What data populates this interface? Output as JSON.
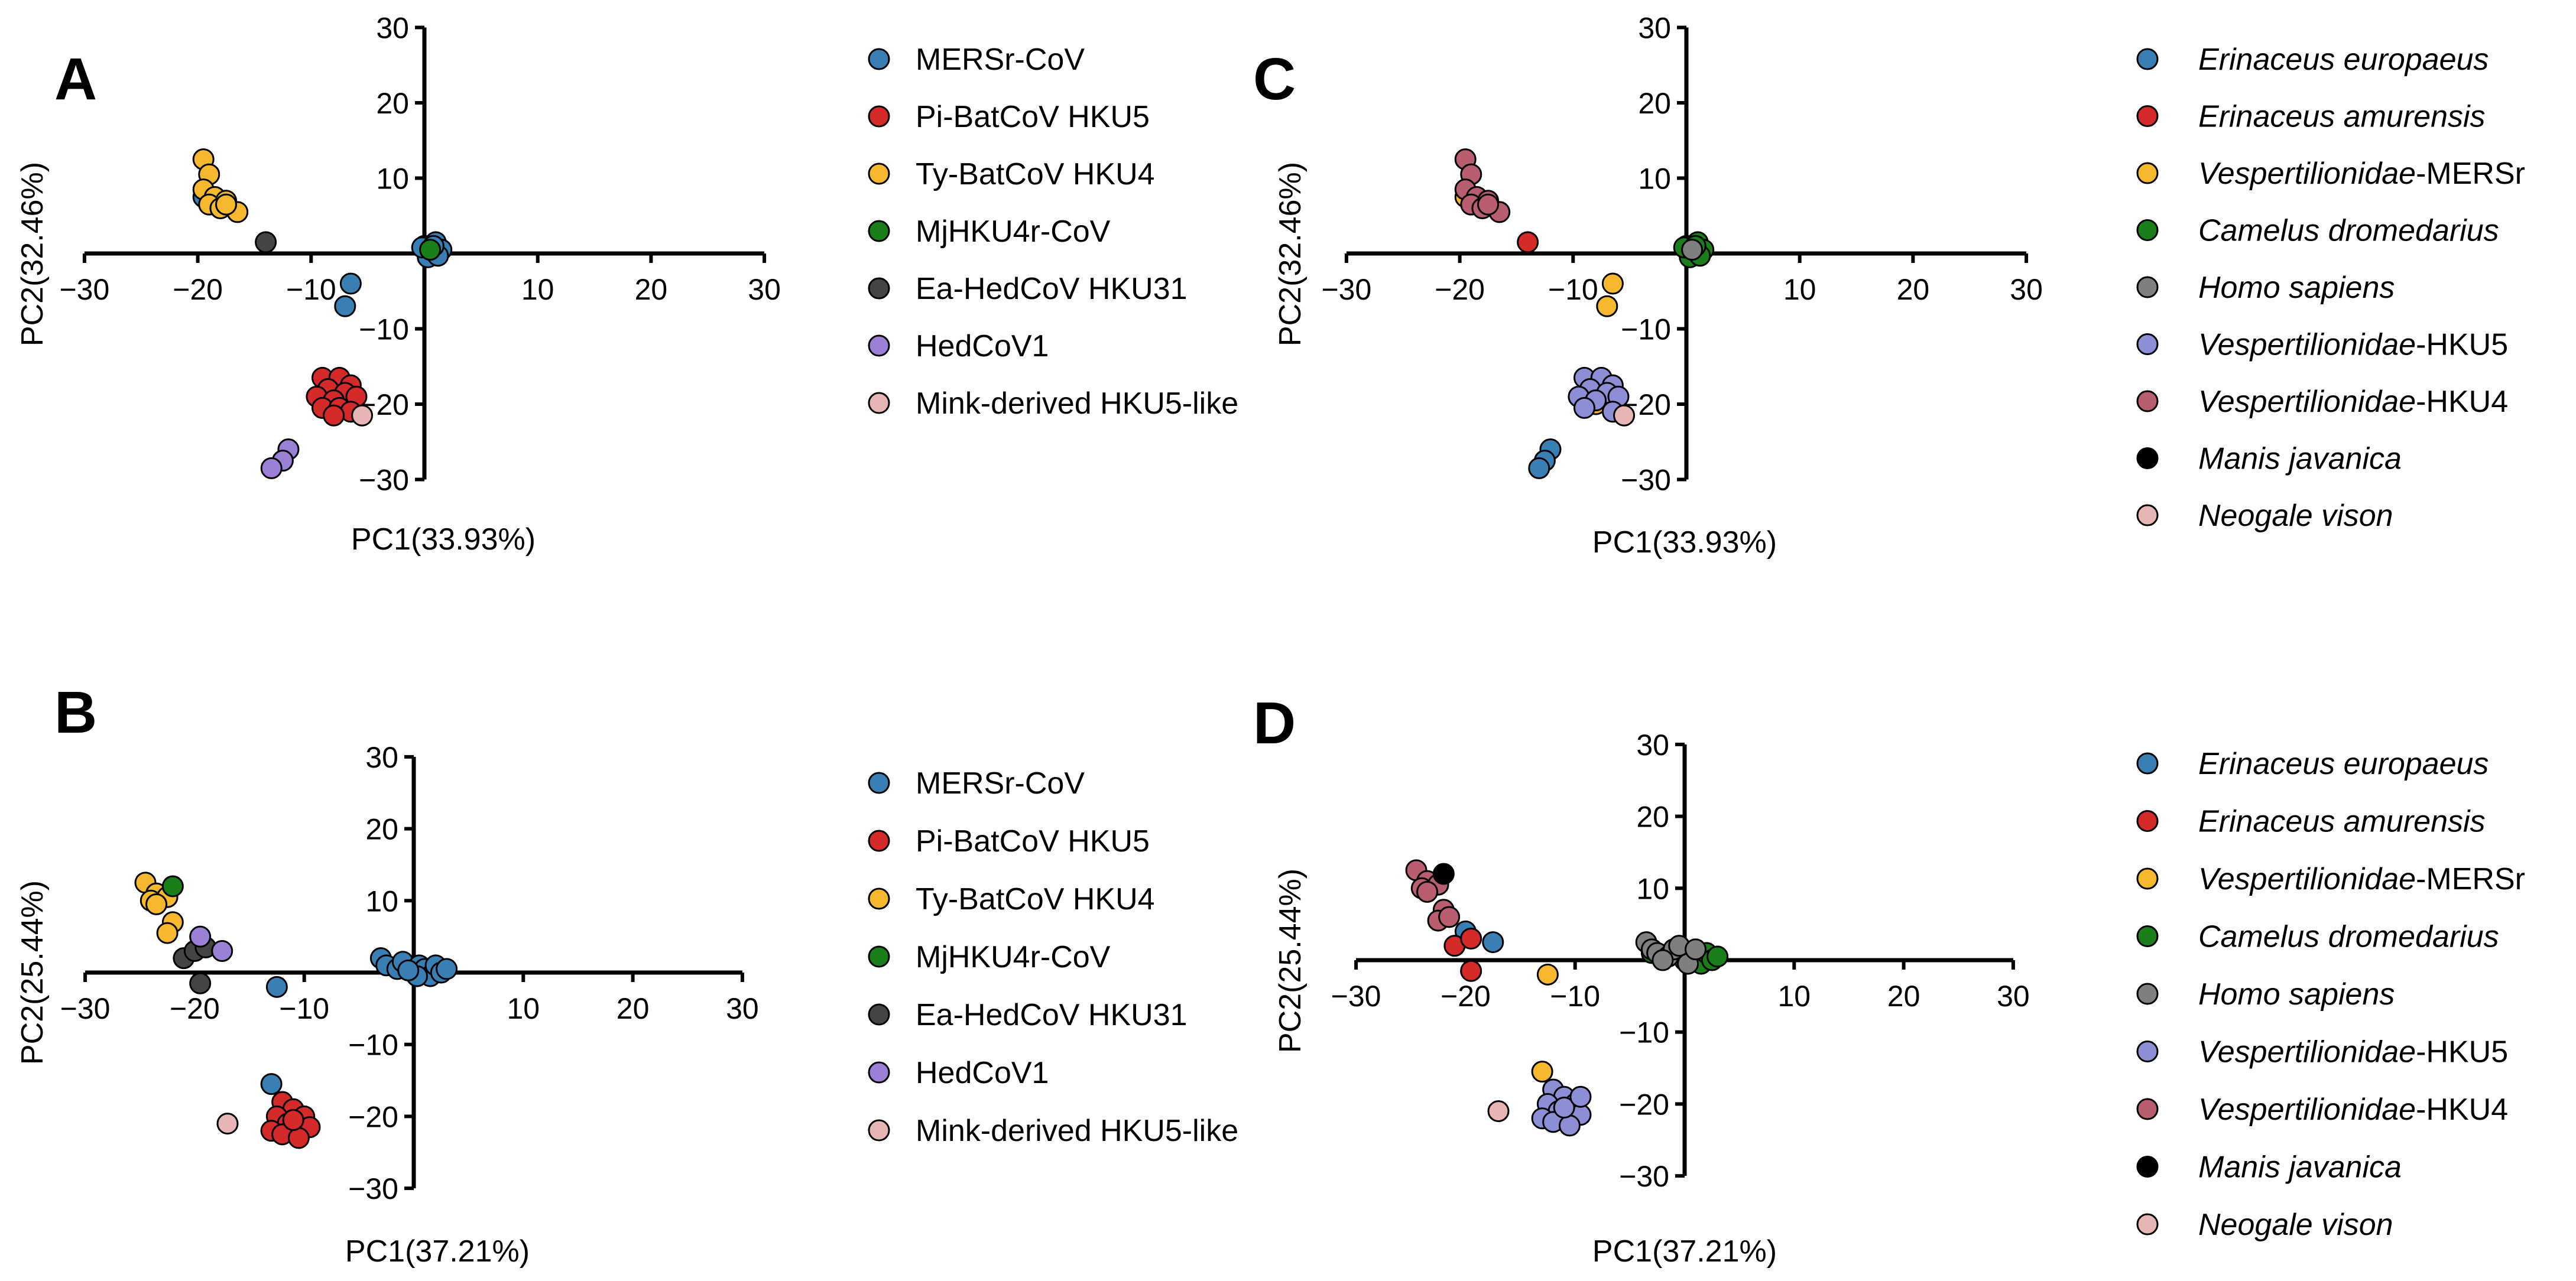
{
  "chart_data": [
    {
      "panel": "A",
      "type": "scatter",
      "xlabel": "PC1(33.93%)",
      "ylabel": "PC2(32.46%)",
      "xlim": [
        -30,
        30
      ],
      "ylim": [
        -30,
        30
      ],
      "xticks": [
        -30,
        -20,
        -10,
        0,
        10,
        20,
        30
      ],
      "yticks": [
        -30,
        -20,
        -10,
        0,
        10,
        20,
        30
      ],
      "legend": "right",
      "series": [
        {
          "name": "MERSr-CoV",
          "color": "#3a7fb4",
          "points": [
            [
              -19.5,
              7.5
            ],
            [
              -6.5,
              -4
            ],
            [
              -7,
              -7
            ],
            [
              -7.5,
              -20
            ],
            [
              0,
              1
            ],
            [
              0.5,
              0
            ],
            [
              1,
              1.5
            ],
            [
              1.5,
              0.5
            ],
            [
              0.3,
              -0.5
            ],
            [
              1.2,
              -0.3
            ],
            [
              -0.2,
              0.8
            ],
            [
              0.8,
              1
            ]
          ]
        },
        {
          "name": "Pi-BatCoV HKU5",
          "color": "#d42a2a",
          "points": [
            [
              -9,
              -16.5
            ],
            [
              -7.5,
              -16.5
            ],
            [
              -6.5,
              -17.5
            ],
            [
              -8.5,
              -18
            ],
            [
              -7,
              -18.5
            ],
            [
              -9.5,
              -19
            ],
            [
              -8,
              -19.5
            ],
            [
              -6,
              -19
            ],
            [
              -9,
              -20.5
            ],
            [
              -7.5,
              -20.5
            ],
            [
              -6.5,
              -21
            ],
            [
              -8,
              -21.5
            ]
          ]
        },
        {
          "name": "Ty-BatCoV HKU4",
          "color": "#f5b82e",
          "points": [
            [
              -19.5,
              12.5
            ],
            [
              -19,
              10.5
            ],
            [
              -19.5,
              8.5
            ],
            [
              -18.5,
              7.5
            ],
            [
              -17.5,
              7
            ],
            [
              -19,
              6.5
            ],
            [
              -18,
              6
            ],
            [
              -16.5,
              5.5
            ],
            [
              -17.5,
              6.5
            ]
          ]
        },
        {
          "name": "MjHKU4r-CoV",
          "color": "#1a7f1a",
          "points": [
            [
              0.5,
              0.5
            ]
          ]
        },
        {
          "name": "Ea-HedCoV HKU31",
          "color": "#444444",
          "points": [
            [
              -14,
              1.5
            ]
          ]
        },
        {
          "name": "HedCoV1",
          "color": "#9c7fd6",
          "points": [
            [
              -12,
              -26
            ],
            [
              -12.5,
              -27.5
            ],
            [
              -13.5,
              -28.5
            ]
          ]
        },
        {
          "name": "Mink-derived HKU5-like",
          "color": "#e8b5b5",
          "points": [
            [
              -5.5,
              -21.5
            ]
          ]
        }
      ]
    },
    {
      "panel": "B",
      "type": "scatter",
      "xlabel": "PC1(37.21%)",
      "ylabel": "PC2(25.44%)",
      "xlim": [
        -30,
        30
      ],
      "ylim": [
        -30,
        30
      ],
      "xticks": [
        -30,
        -20,
        -10,
        0,
        10,
        20,
        30
      ],
      "yticks": [
        -30,
        -20,
        -10,
        0,
        10,
        20,
        30
      ],
      "legend": "right",
      "series": [
        {
          "name": "MERSr-CoV",
          "color": "#3a7fb4",
          "points": [
            [
              -12.5,
              -2
            ],
            [
              -13,
              -15.5
            ],
            [
              -3,
              2
            ],
            [
              -2.5,
              1
            ],
            [
              -1.5,
              0.5
            ],
            [
              -1,
              1.5
            ],
            [
              0,
              0
            ],
            [
              0.5,
              1
            ],
            [
              1,
              0.5
            ],
            [
              1.5,
              -0.5
            ],
            [
              2,
              1
            ],
            [
              2.5,
              0
            ],
            [
              3,
              0.5
            ],
            [
              0.3,
              -0.5
            ],
            [
              -0.5,
              0.3
            ]
          ]
        },
        {
          "name": "Pi-BatCoV HKU5",
          "color": "#d42a2a",
          "points": [
            [
              -12,
              -18
            ],
            [
              -11,
              -19
            ],
            [
              -10,
              -20
            ],
            [
              -12.5,
              -20
            ],
            [
              -11.5,
              -21
            ],
            [
              -9.5,
              -21.5
            ],
            [
              -13,
              -22
            ],
            [
              -12,
              -22.5
            ],
            [
              -10.5,
              -23
            ],
            [
              -11,
              -20.5
            ]
          ]
        },
        {
          "name": "Ty-BatCoV HKU4",
          "color": "#f5b82e",
          "points": [
            [
              -24.5,
              12.5
            ],
            [
              -23.5,
              11
            ],
            [
              -24,
              10
            ],
            [
              -22.5,
              10.5
            ],
            [
              -23.5,
              9.5
            ],
            [
              -22,
              7
            ],
            [
              -22.5,
              5.5
            ]
          ]
        },
        {
          "name": "MjHKU4r-CoV",
          "color": "#1a7f1a",
          "points": [
            [
              -22,
              12
            ]
          ]
        },
        {
          "name": "Ea-HedCoV HKU31",
          "color": "#444444",
          "points": [
            [
              -21,
              2
            ],
            [
              -20,
              3
            ],
            [
              -19,
              3.5
            ],
            [
              -19.5,
              -1.5
            ]
          ]
        },
        {
          "name": "HedCoV1",
          "color": "#9c7fd6",
          "points": [
            [
              -19.5,
              5
            ],
            [
              -17.5,
              3
            ]
          ]
        },
        {
          "name": "Mink-derived HKU5-like",
          "color": "#e8b5b5",
          "points": [
            [
              -17,
              -21
            ]
          ]
        }
      ]
    },
    {
      "panel": "C",
      "type": "scatter",
      "xlabel": "PC1(33.93%)",
      "ylabel": "PC2(32.46%)",
      "xlim": [
        -30,
        30
      ],
      "ylim": [
        -30,
        30
      ],
      "xticks": [
        -30,
        -20,
        -10,
        0,
        10,
        20,
        30
      ],
      "yticks": [
        -30,
        -20,
        -10,
        0,
        10,
        20,
        30
      ],
      "legend": "right",
      "series": [
        {
          "name": "Erinaceus europaeus",
          "color": "#3a7fb4",
          "points": [
            [
              -12,
              -26
            ],
            [
              -12.5,
              -27.5
            ],
            [
              -13,
              -28.5
            ]
          ]
        },
        {
          "name": "Erinaceus amurensis",
          "color": "#d42a2a",
          "points": [
            [
              -14,
              1.5
            ]
          ]
        },
        {
          "name": "Vespertilionidae-MERSr",
          "color": "#f5b82e",
          "points": [
            [
              -6.5,
              -4
            ],
            [
              -7,
              -7
            ],
            [
              -8,
              -20
            ],
            [
              -19.5,
              7.5
            ]
          ]
        },
        {
          "name": "Camelus dromedarius",
          "color": "#1a7f1a",
          "points": [
            [
              0,
              1
            ],
            [
              0.5,
              0
            ],
            [
              1,
              1.5
            ],
            [
              1.5,
              0.5
            ],
            [
              0.3,
              -0.5
            ],
            [
              1.2,
              -0.3
            ],
            [
              -0.2,
              0.8
            ],
            [
              0.8,
              1
            ]
          ]
        },
        {
          "name": "Homo sapiens",
          "color": "#7f7f7f",
          "points": [
            [
              0.5,
              0.5
            ]
          ]
        },
        {
          "name": "Vespertilionidae-HKU5",
          "color": "#8d8fd6",
          "points": [
            [
              -9,
              -16.5
            ],
            [
              -7.5,
              -16.5
            ],
            [
              -6.5,
              -17.5
            ],
            [
              -8.5,
              -18
            ],
            [
              -7,
              -18.5
            ],
            [
              -9.5,
              -19
            ],
            [
              -8,
              -19.5
            ],
            [
              -6,
              -19
            ],
            [
              -9,
              -20.5
            ],
            [
              -6.5,
              -21
            ]
          ]
        },
        {
          "name": "Vespertilionidae-HKU4",
          "color": "#b85e6e",
          "points": [
            [
              -19.5,
              12.5
            ],
            [
              -19,
              10.5
            ],
            [
              -19.5,
              8.5
            ],
            [
              -18.5,
              7.5
            ],
            [
              -17.5,
              7
            ],
            [
              -19,
              6.5
            ],
            [
              -18,
              6
            ],
            [
              -16.5,
              5.5
            ],
            [
              -17.5,
              6.5
            ]
          ]
        },
        {
          "name": "Manis javanica",
          "color": "#000000",
          "points": []
        },
        {
          "name": "Neogale vison",
          "color": "#e8b5b5",
          "points": [
            [
              -5.5,
              -21.5
            ]
          ]
        }
      ]
    },
    {
      "panel": "D",
      "type": "scatter",
      "xlabel": "PC1(37.21%)",
      "ylabel": "PC2(25.44%)",
      "xlim": [
        -30,
        30
      ],
      "ylim": [
        -30,
        30
      ],
      "xticks": [
        -30,
        -20,
        -10,
        0,
        10,
        20,
        30
      ],
      "yticks": [
        -30,
        -20,
        -10,
        0,
        10,
        20,
        30
      ],
      "legend": "right",
      "series": [
        {
          "name": "Erinaceus europaeus",
          "color": "#3a7fb4",
          "points": [
            [
              -20,
              4
            ],
            [
              -17.5,
              2.5
            ]
          ]
        },
        {
          "name": "Erinaceus amurensis",
          "color": "#d42a2a",
          "points": [
            [
              -21,
              2
            ],
            [
              -19.5,
              3
            ],
            [
              -19.5,
              -1.5
            ]
          ]
        },
        {
          "name": "Vespertilionidae-MERSr",
          "color": "#f5b82e",
          "points": [
            [
              -12.5,
              -2
            ],
            [
              -13,
              -15.5
            ]
          ]
        },
        {
          "name": "Camelus dromedarius",
          "color": "#1a7f1a",
          "points": [
            [
              -3,
              1
            ],
            [
              0,
              0
            ],
            [
              0.5,
              1
            ],
            [
              1,
              0.5
            ],
            [
              1.5,
              -0.5
            ],
            [
              2,
              1
            ],
            [
              2.5,
              0
            ],
            [
              3,
              0.5
            ]
          ]
        },
        {
          "name": "Homo sapiens",
          "color": "#7f7f7f",
          "points": [
            [
              -3.5,
              2.5
            ],
            [
              -3,
              1.5
            ],
            [
              -2.5,
              1
            ],
            [
              -1.5,
              0.5
            ],
            [
              -1,
              1.5
            ],
            [
              -0.5,
              2
            ],
            [
              0.3,
              -0.5
            ],
            [
              1,
              1.5
            ],
            [
              -2,
              0
            ]
          ]
        },
        {
          "name": "Vespertilionidae-HKU5",
          "color": "#8d8fd6",
          "points": [
            [
              -12,
              -18
            ],
            [
              -11,
              -19
            ],
            [
              -10,
              -20
            ],
            [
              -12.5,
              -20
            ],
            [
              -11.5,
              -21
            ],
            [
              -9.5,
              -21.5
            ],
            [
              -13,
              -22
            ],
            [
              -12,
              -22.5
            ],
            [
              -10.5,
              -23
            ],
            [
              -11,
              -20.5
            ],
            [
              -9.5,
              -19
            ]
          ]
        },
        {
          "name": "Vespertilionidae-HKU4",
          "color": "#b85e6e",
          "points": [
            [
              -24.5,
              12.5
            ],
            [
              -23.5,
              11
            ],
            [
              -24,
              10
            ],
            [
              -22.5,
              10.5
            ],
            [
              -23.5,
              9.5
            ],
            [
              -22,
              7
            ],
            [
              -22.5,
              5.5
            ],
            [
              -21.5,
              6
            ]
          ]
        },
        {
          "name": "Manis javanica",
          "color": "#000000",
          "points": [
            [
              -22,
              12
            ]
          ]
        },
        {
          "name": "Neogale vison",
          "color": "#e8b5b5",
          "points": [
            [
              -17,
              -21
            ]
          ]
        }
      ]
    }
  ]
}
